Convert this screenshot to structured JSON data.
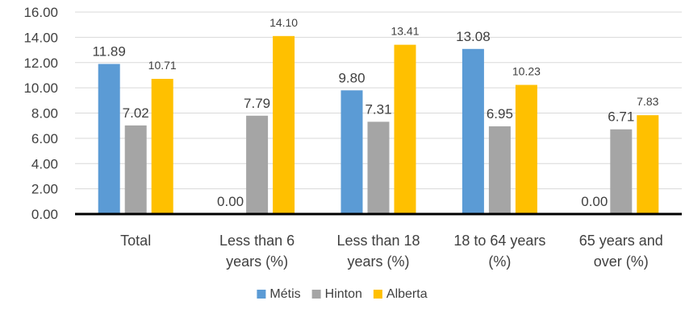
{
  "chart_data": {
    "type": "bar",
    "title": "",
    "xlabel": "",
    "ylabel": "",
    "ylim": [
      0,
      16
    ],
    "ytick_step": 2,
    "ytick_labels": [
      "0.00",
      "2.00",
      "4.00",
      "6.00",
      "8.00",
      "10.00",
      "12.00",
      "14.00",
      "16.00"
    ],
    "grid": true,
    "legend_position": "bottom",
    "categories": [
      [
        "Total"
      ],
      [
        "Less than 6",
        "years (%)"
      ],
      [
        "Less than 18",
        "years (%)"
      ],
      [
        "18 to 64 years",
        "(%)"
      ],
      [
        "65 years and",
        "over (%)"
      ]
    ],
    "series": [
      {
        "name": "Métis",
        "color": "#5B9BD5",
        "values": [
          11.89,
          0.0,
          9.8,
          13.08,
          0.0
        ],
        "labels": [
          "11.89",
          "0.00",
          "9.80",
          "13.08",
          "0.00"
        ]
      },
      {
        "name": "Hinton",
        "color": "#A5A5A5",
        "values": [
          7.02,
          7.79,
          7.31,
          6.95,
          6.71
        ],
        "labels": [
          "7.02",
          "7.79",
          "7.31",
          "6.95",
          "6.71"
        ]
      },
      {
        "name": "Alberta",
        "color": "#FFC000",
        "values": [
          10.71,
          14.1,
          13.41,
          10.23,
          7.83
        ],
        "labels": [
          "10.71",
          "14.10",
          "13.41",
          "10.23",
          "7.83"
        ]
      }
    ]
  }
}
